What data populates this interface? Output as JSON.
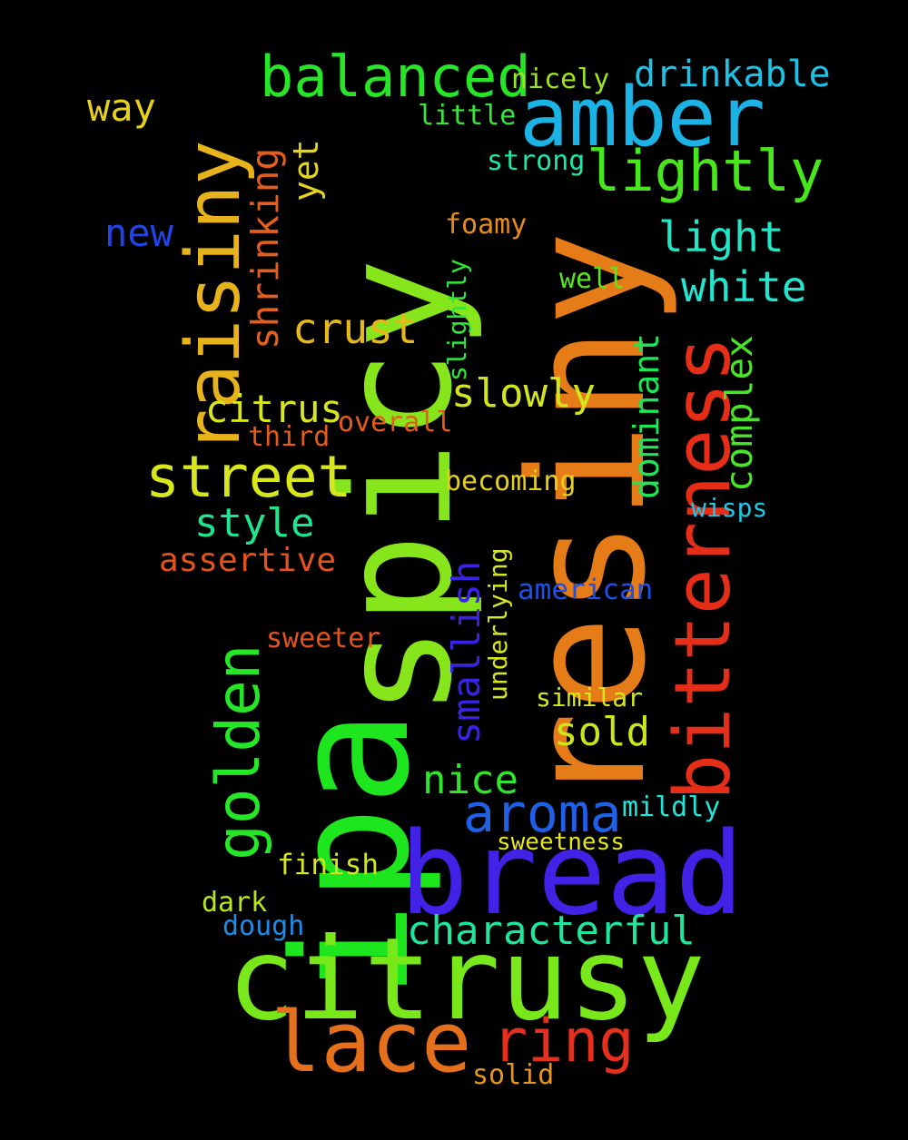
{
  "words": {
    "ipa": {
      "text": "ipa",
      "color": "#1ee61e"
    },
    "spicy": {
      "text": "spicy",
      "color": "#86e61b"
    },
    "resiny": {
      "text": "resiny",
      "color": "#e57c18"
    },
    "citrusy": {
      "text": "citrusy",
      "color": "#79e81b"
    },
    "bread": {
      "text": "bread",
      "color": "#4222e6"
    },
    "raisiny": {
      "text": "raisiny",
      "color": "#e8b31a"
    },
    "amber": {
      "text": "amber",
      "color": "#1bb2e6"
    },
    "bitterness": {
      "text": "bitterness",
      "color": "#e62d18"
    },
    "golden": {
      "text": "golden",
      "color": "#26e628"
    },
    "lace": {
      "text": "lace",
      "color": "#e5701b"
    },
    "ring": {
      "text": "ring",
      "color": "#e6301c"
    },
    "street": {
      "text": "street",
      "color": "#d8e61c"
    },
    "balanced": {
      "text": "balanced",
      "color": "#27e627"
    },
    "lightly": {
      "text": "lightly",
      "color": "#48e61c"
    },
    "aroma": {
      "text": "aroma",
      "color": "#1f60e6"
    },
    "shrinking": {
      "text": "shrinking",
      "color": "#e65d1c"
    },
    "smallish": {
      "text": "smallish",
      "color": "#3a22e6"
    },
    "characterful": {
      "text": "characterful",
      "color": "#1fe69f"
    },
    "drinkable": {
      "text": "drinkable",
      "color": "#1ec2e6"
    },
    "light": {
      "text": "light",
      "color": "#22e6c8"
    },
    "white": {
      "text": "white",
      "color": "#22e6d0"
    },
    "complex": {
      "text": "complex",
      "color": "#46e626"
    },
    "dominant": {
      "text": "dominant",
      "color": "#1ee656"
    },
    "slowly": {
      "text": "slowly",
      "color": "#d3e61d"
    },
    "citrus": {
      "text": "citrus",
      "color": "#d8e61c"
    },
    "crust": {
      "text": "crust",
      "color": "#e6b81b"
    },
    "style": {
      "text": "style",
      "color": "#1de68e"
    },
    "nice": {
      "text": "nice",
      "color": "#30e62c"
    },
    "sold": {
      "text": "sold",
      "color": "#cbe61b"
    },
    "yet": {
      "text": "yet",
      "color": "#e6d41c"
    },
    "way": {
      "text": "way",
      "color": "#e6d01c"
    },
    "new": {
      "text": "new",
      "color": "#2144e6"
    },
    "assertive": {
      "text": "assertive",
      "color": "#e6521c"
    },
    "underlying": {
      "text": "underlying",
      "color": "#d6e61d"
    },
    "slightly": {
      "text": "slightly",
      "color": "#30e63a"
    },
    "nicely": {
      "text": "nicely",
      "color": "#9ee61c"
    },
    "little": {
      "text": "little",
      "color": "#3ae63a"
    },
    "strong": {
      "text": "strong",
      "color": "#1ee6a8"
    },
    "foamy": {
      "text": "foamy",
      "color": "#e68c1c"
    },
    "well": {
      "text": "well",
      "color": "#5ae61c"
    },
    "overall": {
      "text": "overall",
      "color": "#e65c1c"
    },
    "third": {
      "text": "third",
      "color": "#e65a1c"
    },
    "becoming": {
      "text": "becoming",
      "color": "#e6d01c"
    },
    "wisps": {
      "text": "wisps",
      "color": "#1ec8e6"
    },
    "american": {
      "text": "american",
      "color": "#1f50e6"
    },
    "sweeter": {
      "text": "sweeter",
      "color": "#e6541c"
    },
    "similar": {
      "text": "similar",
      "color": "#d6e61c"
    },
    "mildly": {
      "text": "mildly",
      "color": "#1ee6d8"
    },
    "sweetness": {
      "text": "sweetness",
      "color": "#e6e61c"
    },
    "finish": {
      "text": "finish",
      "color": "#d6e61d"
    },
    "dark": {
      "text": "dark",
      "color": "#b8e61c"
    },
    "dough": {
      "text": "dough",
      "color": "#1e8ce6"
    },
    "solid": {
      "text": "solid",
      "color": "#e6961c"
    }
  }
}
